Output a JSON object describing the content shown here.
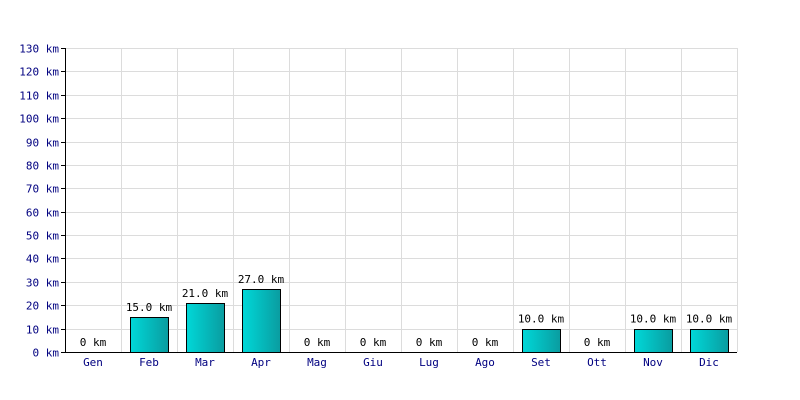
{
  "chart_data": {
    "type": "bar",
    "categories": [
      "Gen",
      "Feb",
      "Mar",
      "Apr",
      "Mag",
      "Giu",
      "Lug",
      "Ago",
      "Set",
      "Ott",
      "Nov",
      "Dic"
    ],
    "values": [
      0,
      15,
      21,
      27,
      0,
      0,
      0,
      0,
      10,
      0,
      10,
      10
    ],
    "data_labels": [
      "0 km",
      "15.0 km",
      "21.0 km",
      "27.0 km",
      "0 km",
      "0 km",
      "0 km",
      "0 km",
      "10.0 km",
      "0 km",
      "10.0 km",
      "10.0 km"
    ],
    "y_ticks": [
      "0 km",
      "10 km",
      "20 km",
      "30 km",
      "40 km",
      "50 km",
      "60 km",
      "70 km",
      "80 km",
      "90 km",
      "100 km",
      "110 km",
      "120 km",
      "130 km"
    ],
    "ylim": [
      0,
      130
    ],
    "grid": true,
    "bar_colors": [
      "#00d8d8",
      "#0a9ca0"
    ],
    "unit": "km"
  }
}
